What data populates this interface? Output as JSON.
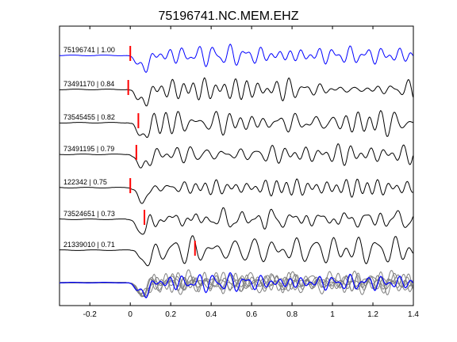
{
  "chart_data": {
    "type": "line",
    "title": "75196741.NC.MEM.EHZ",
    "xlabel": "",
    "ylabel": "",
    "xlim": [
      -0.35,
      1.4
    ],
    "x_ticks": [
      "-0.2",
      "0",
      "0.2",
      "0.4",
      "0.6",
      "0.8",
      "1",
      "1.2",
      "1.4"
    ],
    "x_tick_values": [
      -0.2,
      0,
      0.2,
      0.4,
      0.6,
      0.8,
      1.0,
      1.2,
      1.4
    ],
    "grid": false,
    "colors": {
      "reference": "#0000ff",
      "trace": "#000000",
      "stack": "#808080",
      "pick": "#ff0000"
    },
    "traces": [
      {
        "label": "75196741 | 1.00",
        "pick_time": 0.0,
        "color": "reference"
      },
      {
        "label": "73491170 | 0.84",
        "pick_time": -0.01,
        "color": "trace"
      },
      {
        "label": "73545455 | 0.82",
        "pick_time": 0.04,
        "color": "trace"
      },
      {
        "label": "73491195 | 0.79",
        "pick_time": 0.03,
        "color": "trace"
      },
      {
        "label": "122342 | 0.75",
        "pick_time": 0.0,
        "color": "trace"
      },
      {
        "label": "73524651 | 0.73",
        "pick_time": 0.07,
        "color": "trace"
      },
      {
        "label": "21339010 | 0.71",
        "pick_time": 0.32,
        "color": "trace"
      }
    ],
    "stack_row": {
      "label": ""
    }
  }
}
